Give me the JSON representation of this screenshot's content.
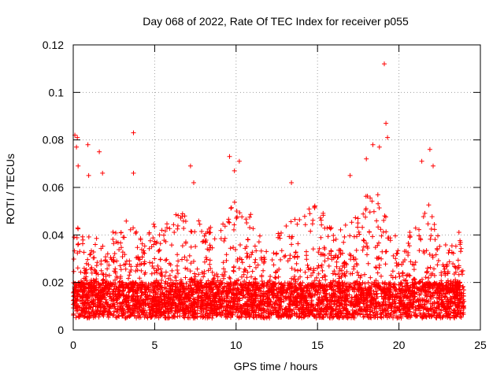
{
  "chart_data": {
    "type": "scatter",
    "title": "Day 068 of 2022, Rate Of TEC Index for receiver p055",
    "xlabel": "GPS time / hours",
    "ylabel": "ROTI / TECUs",
    "xlim": [
      0,
      25
    ],
    "ylim": [
      0,
      0.12
    ],
    "xticks": [
      0,
      5,
      10,
      15,
      20,
      25
    ],
    "xtick_labels": [
      "0",
      "5",
      "10",
      "15",
      "20",
      "25"
    ],
    "yticks": [
      0,
      0.02,
      0.04,
      0.06,
      0.08,
      0.1,
      0.12
    ],
    "ytick_labels": [
      "0",
      "0.02",
      "0.04",
      "0.06",
      "0.08",
      "0.1",
      "0.12"
    ],
    "grid": true,
    "marker": "+",
    "color": "#ff0000",
    "series": [
      {
        "x_range": [
          0,
          24
        ],
        "baseline_band": [
          0.005,
          0.02
        ],
        "notable_points": [
          {
            "x": 0.1,
            "y": 0.082
          },
          {
            "x": 0.25,
            "y": 0.081
          },
          {
            "x": 0.2,
            "y": 0.077
          },
          {
            "x": 0.3,
            "y": 0.069
          },
          {
            "x": 0.9,
            "y": 0.078
          },
          {
            "x": 0.95,
            "y": 0.065
          },
          {
            "x": 1.6,
            "y": 0.075
          },
          {
            "x": 1.8,
            "y": 0.066
          },
          {
            "x": 3.7,
            "y": 0.083
          },
          {
            "x": 3.7,
            "y": 0.066
          },
          {
            "x": 7.2,
            "y": 0.069
          },
          {
            "x": 7.4,
            "y": 0.062
          },
          {
            "x": 9.6,
            "y": 0.073
          },
          {
            "x": 9.9,
            "y": 0.067
          },
          {
            "x": 10.2,
            "y": 0.071
          },
          {
            "x": 13.4,
            "y": 0.062
          },
          {
            "x": 17.0,
            "y": 0.065
          },
          {
            "x": 18.0,
            "y": 0.072
          },
          {
            "x": 18.4,
            "y": 0.078
          },
          {
            "x": 18.8,
            "y": 0.077
          },
          {
            "x": 19.1,
            "y": 0.112
          },
          {
            "x": 19.2,
            "y": 0.087
          },
          {
            "x": 19.3,
            "y": 0.081
          },
          {
            "x": 21.4,
            "y": 0.071
          },
          {
            "x": 21.9,
            "y": 0.076
          },
          {
            "x": 22.1,
            "y": 0.069
          }
        ]
      }
    ]
  }
}
